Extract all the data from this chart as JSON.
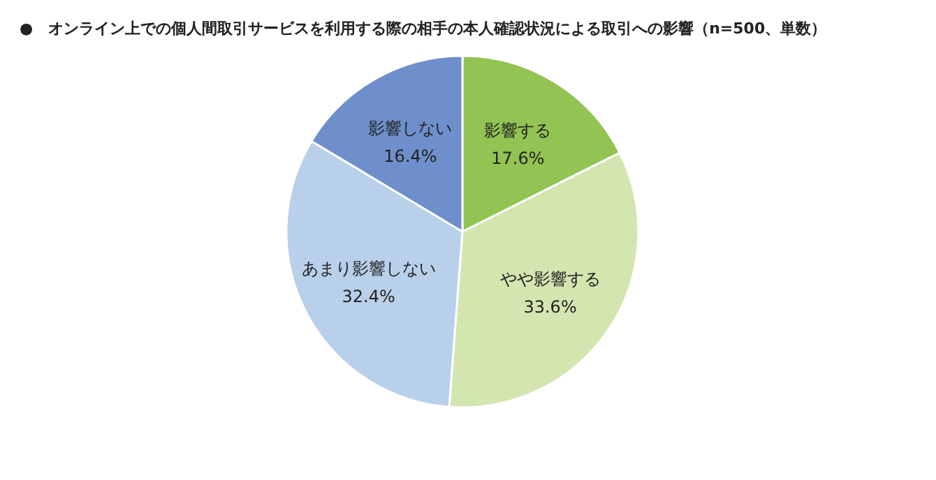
{
  "chart_data": {
    "type": "pie",
    "title": "●　オンライン上での個人間取引サービスを利用する際の相手の本人確認状況による取引への影響（n=500、単数）",
    "categories": [
      "影響する",
      "やや影響する",
      "あまり影響しない",
      "影響しない"
    ],
    "values": [
      17.6,
      33.6,
      32.4,
      16.4
    ],
    "colors": [
      "#92c353",
      "#d4e6b0",
      "#b9d0ea",
      "#6e8fcb"
    ],
    "value_labels": [
      "17.6%",
      "33.6%",
      "32.4%",
      "16.4%"
    ]
  }
}
